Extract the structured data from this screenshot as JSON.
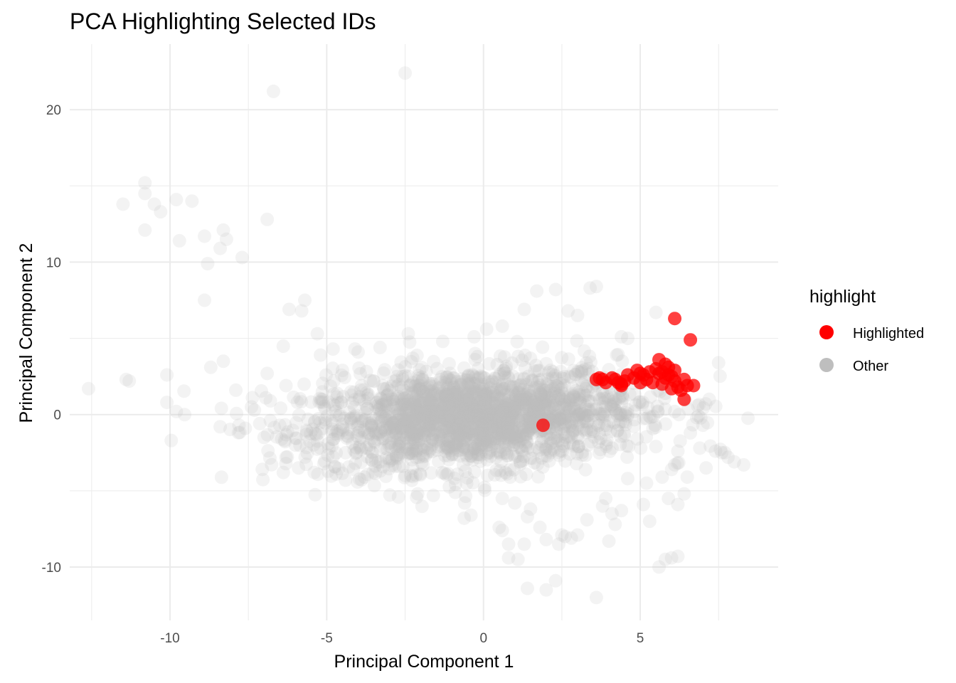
{
  "chart_data": {
    "type": "scatter",
    "title": "PCA Highlighting Selected IDs",
    "xlabel": "Principal Component 1",
    "ylabel": "Principal Component 2",
    "xlim": [
      -13.2,
      9.4
    ],
    "ylim": [
      -13.5,
      24.3
    ],
    "x_ticks": [
      -10,
      -5,
      0,
      5
    ],
    "y_ticks": [
      -10,
      0,
      10,
      20
    ],
    "grid": true,
    "legend": {
      "title": "highlight",
      "placement": "right",
      "entries": [
        {
          "label": "Highlighted",
          "color": "#ff0000"
        },
        {
          "label": "Other",
          "color": "#bebebe"
        }
      ]
    },
    "series": [
      {
        "name": "Other",
        "color": "#bebebe",
        "opacity": 0.18,
        "cloud": {
          "center": [
            -0.3,
            -0.2
          ],
          "spread": [
            2.6,
            1.6
          ],
          "count": 2200
        },
        "points": [
          [
            -2.5,
            22.4
          ],
          [
            -6.7,
            21.2
          ],
          [
            -10.8,
            15.2
          ],
          [
            -10.8,
            14.5
          ],
          [
            -11.5,
            13.8
          ],
          [
            -10.5,
            13.8
          ],
          [
            -10.3,
            13.3
          ],
          [
            -9.8,
            14.1
          ],
          [
            -9.3,
            14.0
          ],
          [
            -10.8,
            12.1
          ],
          [
            -9.7,
            11.4
          ],
          [
            -8.9,
            11.7
          ],
          [
            -8.3,
            12.1
          ],
          [
            -8.2,
            11.5
          ],
          [
            -8.4,
            10.9
          ],
          [
            -7.7,
            10.3
          ],
          [
            -8.8,
            9.9
          ],
          [
            -6.9,
            12.8
          ],
          [
            -8.9,
            7.5
          ],
          [
            -6.2,
            6.9
          ],
          [
            -5.8,
            6.8
          ],
          [
            -5.7,
            7.5
          ],
          [
            -12.6,
            1.7
          ],
          [
            -11.4,
            2.3
          ],
          [
            -11.3,
            2.2
          ],
          [
            -10.1,
            2.6
          ],
          [
            -10.1,
            0.8
          ],
          [
            -9.8,
            0.2
          ],
          [
            -8.7,
            3.1
          ],
          [
            -8.3,
            3.5
          ],
          [
            -6.9,
            2.7
          ],
          [
            -6.3,
            1.9
          ],
          [
            -5.3,
            5.3
          ],
          [
            -4.8,
            4.3
          ],
          [
            -4.0,
            4.1
          ],
          [
            -5.2,
            3.9
          ],
          [
            -4.5,
            2.9
          ],
          [
            -7.9,
            1.6
          ],
          [
            -7.8,
            -0.7
          ],
          [
            -8.4,
            -0.8
          ],
          [
            -7.6,
            -0.9
          ],
          [
            -7.4,
            0.5
          ],
          [
            -6.8,
            0.9
          ],
          [
            -6.5,
            -0.7
          ],
          [
            -6.3,
            -2.8
          ],
          [
            -5.9,
            -3.5
          ],
          [
            -5.4,
            -3.8
          ],
          [
            -4.7,
            -3.9
          ],
          [
            -4.4,
            -4.3
          ],
          [
            -3.8,
            -4.1
          ],
          [
            -2.5,
            -4.0
          ],
          [
            -2.1,
            -5.2
          ],
          [
            -1.6,
            -5.3
          ],
          [
            -0.9,
            -5.1
          ],
          [
            -0.6,
            -5.8
          ],
          [
            -0.4,
            -6.6
          ],
          [
            0.6,
            -5.5
          ],
          [
            1.0,
            -5.8
          ],
          [
            1.5,
            -6.2
          ],
          [
            1.4,
            -6.7
          ],
          [
            0.5,
            -7.4
          ],
          [
            0.6,
            -7.6
          ],
          [
            0.8,
            -8.5
          ],
          [
            0.8,
            -9.4
          ],
          [
            1.1,
            -9.5
          ],
          [
            1.3,
            -8.5
          ],
          [
            1.8,
            -7.4
          ],
          [
            2.0,
            -8.2
          ],
          [
            2.5,
            -7.9
          ],
          [
            2.6,
            -8.0
          ],
          [
            2.8,
            -8.1
          ],
          [
            3.0,
            -7.9
          ],
          [
            2.4,
            -8.5
          ],
          [
            3.3,
            -6.9
          ],
          [
            3.8,
            -6.0
          ],
          [
            4.1,
            -6.5
          ],
          [
            4.2,
            -7.2
          ],
          [
            4.4,
            -6.3
          ],
          [
            5.3,
            -7.0
          ],
          [
            4.0,
            -8.3
          ],
          [
            5.1,
            -5.9
          ],
          [
            5.9,
            -5.5
          ],
          [
            6.2,
            -5.9
          ],
          [
            6.4,
            -5.2
          ],
          [
            6.5,
            -4.1
          ],
          [
            6.1,
            -3.3
          ],
          [
            6.2,
            -2.4
          ],
          [
            6.6,
            -1.2
          ],
          [
            7.0,
            -0.7
          ],
          [
            6.9,
            -2.2
          ],
          [
            7.1,
            -3.5
          ],
          [
            7.4,
            -2.4
          ],
          [
            7.6,
            -2.5
          ],
          [
            7.7,
            -2.5
          ],
          [
            7.8,
            -2.8
          ],
          [
            8.0,
            -3.1
          ],
          [
            8.3,
            -3.3
          ],
          [
            7.5,
            3.4
          ],
          [
            7.2,
            1.0
          ],
          [
            6.8,
            -0.2
          ],
          [
            6.1,
            0.2
          ],
          [
            5.8,
            1.4
          ],
          [
            5.5,
            6.7
          ],
          [
            4.6,
            5.0
          ],
          [
            4.4,
            5.1
          ],
          [
            3.6,
            8.4
          ],
          [
            3.4,
            8.3
          ],
          [
            2.3,
            8.2
          ],
          [
            1.7,
            8.1
          ],
          [
            2.7,
            6.8
          ],
          [
            3.0,
            6.5
          ],
          [
            1.3,
            6.9
          ],
          [
            0.6,
            5.8
          ],
          [
            0.1,
            5.6
          ],
          [
            -0.3,
            5.1
          ],
          [
            -1.3,
            4.8
          ],
          [
            -2.4,
            5.3
          ],
          [
            -3.3,
            4.4
          ],
          [
            -4.1,
            4.3
          ],
          [
            -6.8,
            -0.4
          ],
          [
            -7.0,
            -1.5
          ],
          [
            -6.0,
            -2.0
          ],
          [
            -5.2,
            -2.2
          ],
          [
            1.4,
            -11.4
          ],
          [
            2.3,
            -10.9
          ],
          [
            3.6,
            -12.0
          ],
          [
            5.6,
            -10.0
          ],
          [
            5.8,
            -9.5
          ],
          [
            6.0,
            -9.4
          ],
          [
            6.2,
            -9.3
          ],
          [
            2.0,
            -11.5
          ],
          [
            3.9,
            -5.5
          ],
          [
            4.6,
            -4.2
          ],
          [
            5.2,
            -4.5
          ],
          [
            5.7,
            -4.1
          ],
          [
            6.0,
            -3.6
          ],
          [
            5.5,
            -2.1
          ],
          [
            4.9,
            -1.6
          ],
          [
            4.1,
            -2.2
          ]
        ]
      },
      {
        "name": "Highlighted",
        "color": "#ff0000",
        "opacity": 0.75,
        "points": [
          [
            6.1,
            6.3
          ],
          [
            6.6,
            4.9
          ],
          [
            5.8,
            3.3
          ],
          [
            5.9,
            3.1
          ],
          [
            5.7,
            2.8
          ],
          [
            5.9,
            2.6
          ],
          [
            6.1,
            2.9
          ],
          [
            6.0,
            2.5
          ],
          [
            5.6,
            2.7
          ],
          [
            5.5,
            3.0
          ],
          [
            5.3,
            2.8
          ],
          [
            5.1,
            2.6
          ],
          [
            4.9,
            2.9
          ],
          [
            5.2,
            2.3
          ],
          [
            5.0,
            2.1
          ],
          [
            5.4,
            2.1
          ],
          [
            5.7,
            2.0
          ],
          [
            6.4,
            2.3
          ],
          [
            6.5,
            1.9
          ],
          [
            6.3,
            1.6
          ],
          [
            6.2,
            1.8
          ],
          [
            6.0,
            1.7
          ],
          [
            6.4,
            1.0
          ],
          [
            4.3,
            2.1
          ],
          [
            4.4,
            2.0
          ],
          [
            4.2,
            2.3
          ],
          [
            4.5,
            2.2
          ],
          [
            4.1,
            2.4
          ],
          [
            3.7,
            2.4
          ],
          [
            3.8,
            2.3
          ],
          [
            3.9,
            2.1
          ],
          [
            4.6,
            2.6
          ],
          [
            4.8,
            2.4
          ],
          [
            5.6,
            3.6
          ],
          [
            5.8,
            2.4
          ],
          [
            6.1,
            2.2
          ],
          [
            6.7,
            1.9
          ],
          [
            4.4,
            1.9
          ],
          [
            3.6,
            2.3
          ],
          [
            5.0,
            2.7
          ],
          [
            1.9,
            -0.7
          ]
        ]
      }
    ]
  }
}
